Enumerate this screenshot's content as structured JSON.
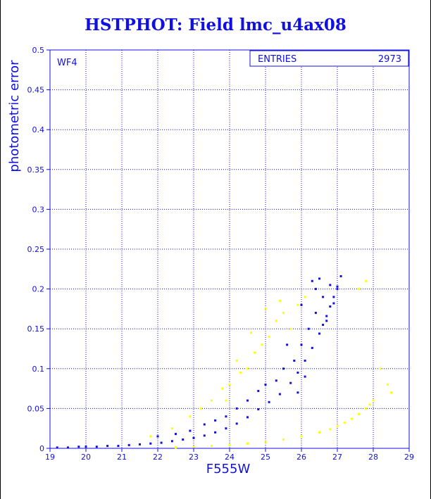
{
  "chart_data": {
    "type": "scatter",
    "title": "HSTPHOT: Field lmc_u4ax08",
    "xlabel": "F555W",
    "ylabel": "photometric error",
    "xlim": [
      19,
      29
    ],
    "ylim": [
      0,
      0.5
    ],
    "xticks": [
      "19",
      "20",
      "21",
      "22",
      "23",
      "24",
      "25",
      "26",
      "27",
      "28",
      "29"
    ],
    "yticks": [
      "0",
      "0.05",
      "0.1",
      "0.15",
      "0.2",
      "0.25",
      "0.3",
      "0.35",
      "0.4",
      "0.45",
      "0.5"
    ],
    "grid": true,
    "chip_label": "WF4",
    "stats_box": {
      "label": "ENTRIES",
      "value": "2973"
    },
    "colors": {
      "axes": "#1010e0",
      "blue_series": "#1010e0",
      "yellow_series": "#ffff00"
    },
    "series": [
      {
        "color": "blue",
        "x": [
          19.2,
          19.5,
          19.8,
          20.0,
          20.3,
          20.6,
          20.9,
          21.2,
          21.5,
          21.8,
          22.1,
          22.4,
          22.7,
          23.0,
          23.3,
          23.6,
          23.9,
          24.2,
          24.5,
          24.8,
          25.1,
          25.4,
          25.7,
          25.9,
          26.1,
          26.3,
          26.5,
          26.6,
          26.7,
          26.8,
          26.9,
          27.0,
          27.1
        ],
        "y": [
          0.001,
          0.001,
          0.002,
          0.002,
          0.002,
          0.003,
          0.003,
          0.004,
          0.005,
          0.006,
          0.007,
          0.009,
          0.011,
          0.013,
          0.016,
          0.02,
          0.025,
          0.031,
          0.039,
          0.049,
          0.058,
          0.068,
          0.082,
          0.095,
          0.11,
          0.126,
          0.144,
          0.155,
          0.166,
          0.178,
          0.19,
          0.203,
          0.216
        ]
      },
      {
        "color": "blue",
        "x": [
          22.0,
          22.5,
          22.9,
          23.3,
          23.6,
          23.9,
          24.2,
          24.5,
          24.8,
          25.0,
          25.3,
          25.5,
          25.8,
          26.0,
          26.2,
          26.4,
          26.6,
          26.8,
          26.5,
          26.3,
          25.9,
          26.1,
          26.7,
          26.9,
          27.0,
          25.6,
          26.0,
          26.4
        ],
        "y": [
          0.015,
          0.018,
          0.022,
          0.03,
          0.035,
          0.04,
          0.05,
          0.06,
          0.072,
          0.08,
          0.085,
          0.1,
          0.11,
          0.13,
          0.15,
          0.17,
          0.19,
          0.205,
          0.213,
          0.21,
          0.07,
          0.09,
          0.16,
          0.182,
          0.2,
          0.13,
          0.18,
          0.2
        ]
      },
      {
        "color": "yellow",
        "x": [
          22.5,
          23.0,
          23.5,
          24.0,
          24.5,
          25.0,
          25.5,
          26.0,
          26.5,
          26.8,
          27.0,
          27.2,
          27.4,
          27.6,
          27.8,
          27.9,
          28.0
        ],
        "y": [
          0.001,
          0.002,
          0.003,
          0.004,
          0.006,
          0.008,
          0.011,
          0.015,
          0.02,
          0.024,
          0.028,
          0.032,
          0.037,
          0.043,
          0.05,
          0.055,
          0.06
        ]
      },
      {
        "color": "yellow",
        "x": [
          21.8,
          22.4,
          22.9,
          23.2,
          23.5,
          23.8,
          24.0,
          24.3,
          24.5,
          24.7,
          24.9,
          25.1,
          25.3,
          25.5,
          25.7,
          25.9,
          26.1,
          24.2,
          24.6,
          25.0,
          25.4,
          23.9,
          28.2,
          28.4,
          28.5,
          27.6,
          27.8
        ],
        "y": [
          0.015,
          0.025,
          0.04,
          0.05,
          0.06,
          0.075,
          0.08,
          0.095,
          0.1,
          0.12,
          0.13,
          0.14,
          0.16,
          0.17,
          0.15,
          0.18,
          0.19,
          0.11,
          0.145,
          0.175,
          0.185,
          0.06,
          0.1,
          0.08,
          0.07,
          0.2,
          0.21
        ]
      }
    ]
  }
}
